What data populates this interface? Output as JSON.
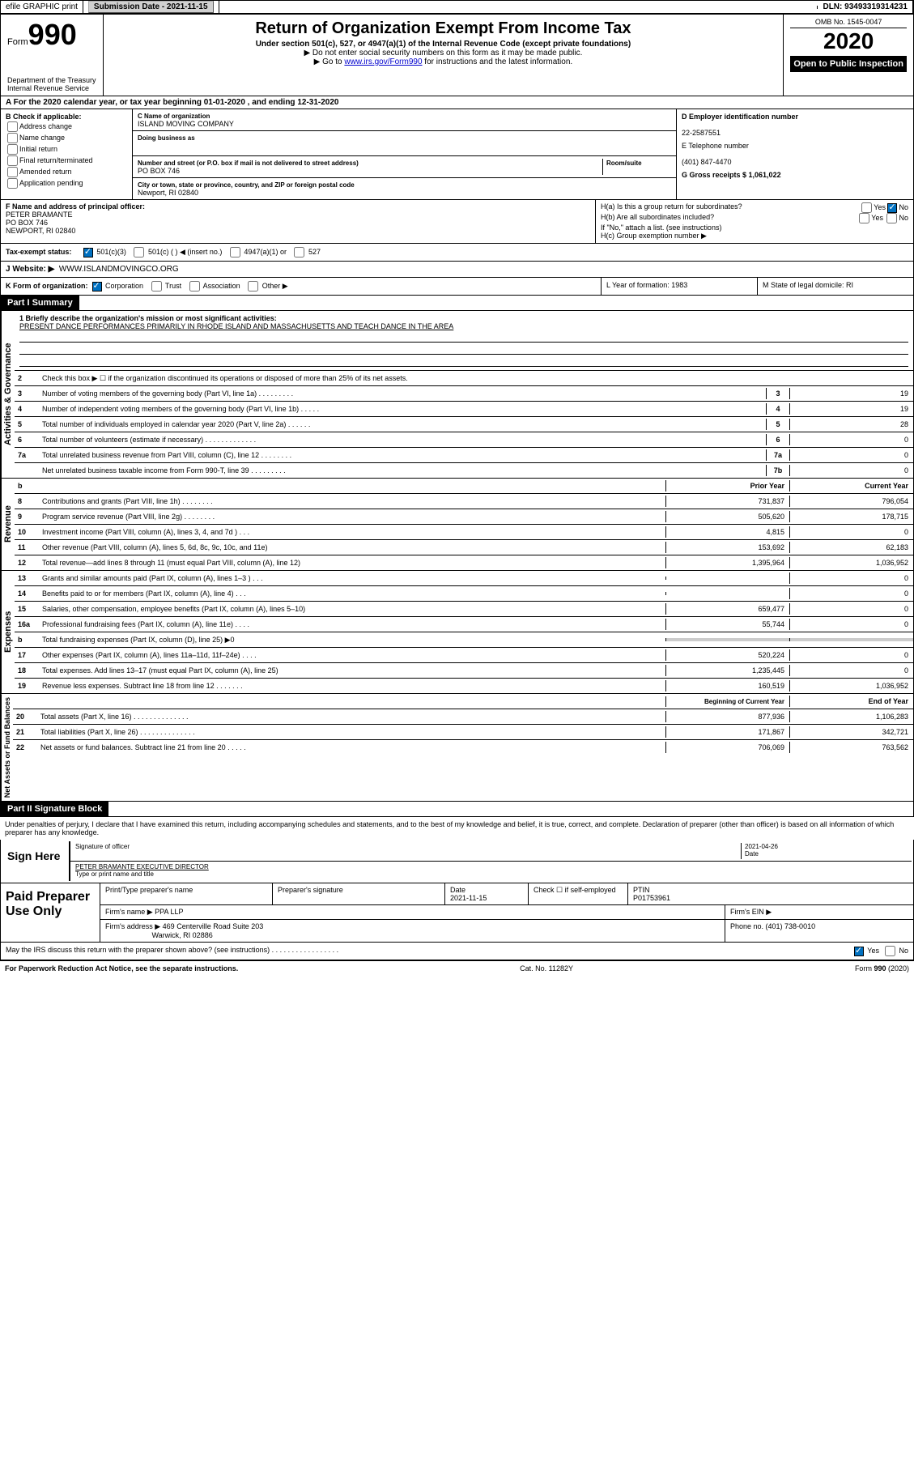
{
  "top_bar": {
    "efile": "efile GRAPHIC print",
    "sub_label": "Submission Date - 2021-11-15",
    "dln": "DLN: 93493319314231"
  },
  "header": {
    "form": "Form",
    "num": "990",
    "title": "Return of Organization Exempt From Income Tax",
    "sub1": "Under section 501(c), 527, or 4947(a)(1) of the Internal Revenue Code (except private foundations)",
    "sub2": "▶ Do not enter social security numbers on this form as it may be made public.",
    "sub3_pre": "▶ Go to ",
    "sub3_link": "www.irs.gov/Form990",
    "sub3_post": " for instructions and the latest information.",
    "omb": "OMB No. 1545-0047",
    "year": "2020",
    "inspect": "Open to Public Inspection",
    "dept": "Department of the Treasury\nInternal Revenue Service"
  },
  "row_a": "A For the 2020 calendar year, or tax year beginning 01-01-2020     , and ending 12-31-2020",
  "col_b": {
    "label": "B Check if applicable:",
    "items": [
      "Address change",
      "Name change",
      "Initial return",
      "Final return/terminated",
      "Amended return",
      "Application pending"
    ]
  },
  "col_c": {
    "name_label": "C Name of organization",
    "name": "ISLAND MOVING COMPANY",
    "dba_label": "Doing business as",
    "addr_label": "Number and street (or P.O. box if mail is not delivered to street address)",
    "room_label": "Room/suite",
    "addr": "PO BOX 746",
    "city_label": "City or town, state or province, country, and ZIP or foreign postal code",
    "city": "Newport, RI  02840"
  },
  "col_d": {
    "ein_label": "D Employer identification number",
    "ein": "22-2587551",
    "phone_label": "E Telephone number",
    "phone": "(401) 847-4470",
    "gross_label": "G Gross receipts $ 1,061,022"
  },
  "section_f": {
    "label": "F Name and address of principal officer:",
    "name": "PETER BRAMANTE",
    "addr1": "PO BOX 746",
    "addr2": "NEWPORT, RI  02840"
  },
  "section_h": {
    "a": "H(a)  Is this a group return for subordinates?",
    "b": "H(b)  Are all subordinates included?",
    "b_note": "If \"No,\" attach a list. (see instructions)",
    "c": "H(c)  Group exemption number ▶"
  },
  "tax_exempt": {
    "label": "Tax-exempt status:",
    "opts": [
      "501(c)(3)",
      "501(c) (   ) ◀ (insert no.)",
      "4947(a)(1) or",
      "527"
    ]
  },
  "website": {
    "label": "J Website: ▶",
    "value": "WWW.ISLANDMOVINGCO.ORG"
  },
  "row_k": {
    "k": "K Form of organization:",
    "k_opts": [
      "Corporation",
      "Trust",
      "Association",
      "Other ▶"
    ],
    "l": "L Year of formation: 1983",
    "m": "M State of legal domicile: RI"
  },
  "part1": {
    "header": "Part I      Summary",
    "label": "Summary"
  },
  "mission": {
    "q1": "1   Briefly describe the organization's mission or most significant activities:",
    "text": "PRESENT DANCE PERFORMANCES PRIMARILY IN RHODE ISLAND AND MASSACHUSETTS AND TEACH DANCE IN THE AREA"
  },
  "governance_label": "Activities & Governance",
  "revenue_label": "Revenue",
  "expenses_label": "Expenses",
  "netassets_label": "Net Assets or Fund Balances",
  "lines_gov": [
    {
      "n": "2",
      "d": "Check this box ▶ ☐  if the organization discontinued its operations or disposed of more than 25% of its net assets."
    },
    {
      "n": "3",
      "d": "Number of voting members of the governing body (Part VI, line 1a)   .    .    .    .    .    .    .    .    .",
      "box": "3",
      "v": "19"
    },
    {
      "n": "4",
      "d": "Number of independent voting members of the governing body (Part VI, line 1b)   .    .    .    .    .",
      "box": "4",
      "v": "19"
    },
    {
      "n": "5",
      "d": "Total number of individuals employed in calendar year 2020 (Part V, line 2a)   .    .    .    .    .    .",
      "box": "5",
      "v": "28"
    },
    {
      "n": "6",
      "d": "Total number of volunteers (estimate if necessary)   .    .    .    .    .    .    .    .    .    .    .    .    .",
      "box": "6",
      "v": "0"
    },
    {
      "n": "7a",
      "d": "Total unrelated business revenue from Part VIII, column (C), line 12   .    .    .    .    .    .    .    .",
      "box": "7a",
      "v": "0"
    },
    {
      "n": "",
      "d": "Net unrelated business taxable income from Form 990-T, line 39   .    .    .    .    .    .    .    .    .",
      "box": "7b",
      "v": "0"
    }
  ],
  "year_headers": {
    "prior": "Prior Year",
    "current": "Current Year"
  },
  "lines_rev": [
    {
      "n": "8",
      "d": "Contributions and grants (Part VIII, line 1h)   .    .    .    .    .    .    .    .",
      "p": "731,837",
      "c": "796,054"
    },
    {
      "n": "9",
      "d": "Program service revenue (Part VIII, line 2g)   .    .    .    .    .    .    .    .",
      "p": "505,620",
      "c": "178,715"
    },
    {
      "n": "10",
      "d": "Investment income (Part VIII, column (A), lines 3, 4, and 7d )   .    .    .",
      "p": "4,815",
      "c": "0"
    },
    {
      "n": "11",
      "d": "Other revenue (Part VIII, column (A), lines 5, 6d, 8c, 9c, 10c, and 11e)",
      "p": "153,692",
      "c": "62,183"
    },
    {
      "n": "12",
      "d": "Total revenue—add lines 8 through 11 (must equal Part VIII, column (A), line 12)",
      "p": "1,395,964",
      "c": "1,036,952"
    }
  ],
  "lines_exp": [
    {
      "n": "13",
      "d": "Grants and similar amounts paid (Part IX, column (A), lines 1–3 )   .    .    .",
      "p": "",
      "c": "0"
    },
    {
      "n": "14",
      "d": "Benefits paid to or for members (Part IX, column (A), line 4)   .    .    .",
      "p": "",
      "c": "0"
    },
    {
      "n": "15",
      "d": "Salaries, other compensation, employee benefits (Part IX, column (A), lines 5–10)",
      "p": "659,477",
      "c": "0"
    },
    {
      "n": "16a",
      "d": "Professional fundraising fees (Part IX, column (A), line 11e)   .    .    .    .",
      "p": "55,744",
      "c": "0"
    },
    {
      "n": "b",
      "d": "Total fundraising expenses (Part IX, column (D), line 25) ▶0",
      "p": "",
      "c": "",
      "noval": true
    },
    {
      "n": "17",
      "d": "Other expenses (Part IX, column (A), lines 11a–11d, 11f–24e)   .    .    .    .",
      "p": "520,224",
      "c": "0"
    },
    {
      "n": "18",
      "d": "Total expenses. Add lines 13–17 (must equal Part IX, column (A), line 25)",
      "p": "1,235,445",
      "c": "0"
    },
    {
      "n": "19",
      "d": "Revenue less expenses. Subtract line 18 from line 12   .    .    .    .    .    .    .",
      "p": "160,519",
      "c": "1,036,952"
    }
  ],
  "net_headers": {
    "begin": "Beginning of Current Year",
    "end": "End of Year"
  },
  "lines_net": [
    {
      "n": "20",
      "d": "Total assets (Part X, line 16)   .    .    .    .    .    .    .    .    .    .    .    .    .    .",
      "p": "877,936",
      "c": "1,106,283"
    },
    {
      "n": "21",
      "d": "Total liabilities (Part X, line 26)   .    .    .    .    .    .    .    .    .    .    .    .    .    .",
      "p": "171,867",
      "c": "342,721"
    },
    {
      "n": "22",
      "d": "Net assets or fund balances. Subtract line 21 from line 20   .    .    .    .    .",
      "p": "706,069",
      "c": "763,562"
    }
  ],
  "part2": {
    "header": "Part II     Signature Block"
  },
  "sig": {
    "decl": "Under penalties of perjury, I declare that I have examined this return, including accompanying schedules and statements, and to the best of my knowledge and belief, it is true, correct, and complete. Declaration of preparer (other than officer) is based on all information of which preparer has any knowledge.",
    "here": "Sign Here",
    "officer": "Signature of officer",
    "date": "2021-04-26",
    "date_label": "Date",
    "name": "PETER BRAMANTE  EXECUTIVE DIRECTOR",
    "name_label": "Type or print name and title"
  },
  "paid": {
    "left": "Paid Preparer Use Only",
    "h1": "Print/Type preparer's name",
    "h2": "Preparer's signature",
    "h3": "Date",
    "h3v": "2021-11-15",
    "h4": "Check ☐ if self-employed",
    "h5": "PTIN",
    "h5v": "P01753961",
    "firm_label": "Firm's name    ▶",
    "firm": "PPA LLP",
    "ein_label": "Firm's EIN ▶",
    "addr_label": "Firm's address ▶",
    "addr": "469 Centerville Road Suite 203",
    "addr2": "Warwick, RI  02886",
    "phone_label": "Phone no. (401) 738-0010",
    "discuss": "May the IRS discuss this return with the preparer shown above? (see instructions)   .    .    .    .    .    .    .    .    .    .    .    .    .    .    .    .    ."
  },
  "footer": {
    "left": "For Paperwork Reduction Act Notice, see the separate instructions.",
    "mid": "Cat. No. 11282Y",
    "right": "Form 990 (2020)"
  }
}
